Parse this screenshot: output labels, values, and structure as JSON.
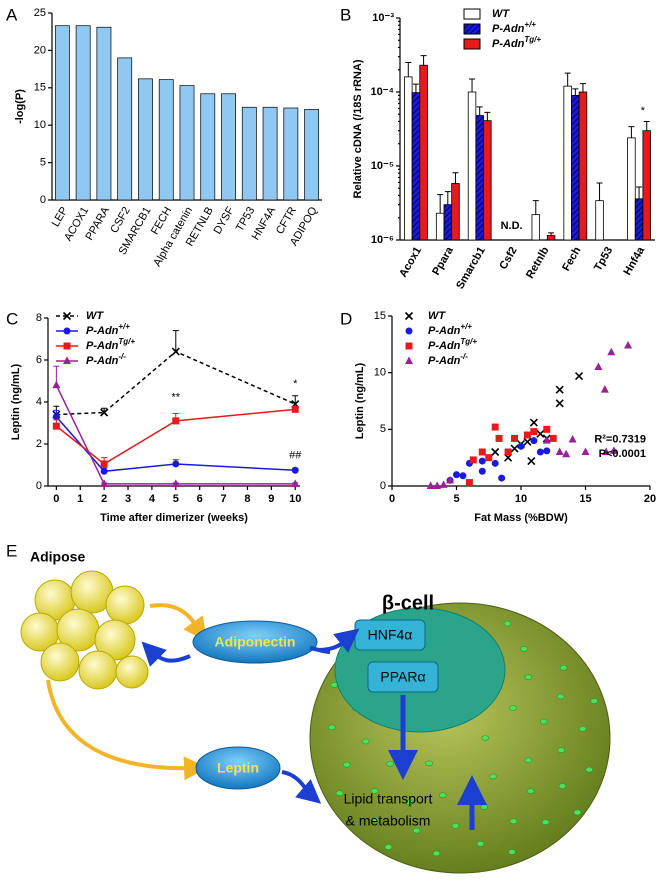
{
  "chart_data": [
    {
      "type": "bar",
      "panel_label": "A",
      "ylabel": "-log(P)",
      "color": "#8fc8f0",
      "categories": [
        "LEP",
        "ACOX1",
        "PPARA",
        "CSF2",
        "SMARCB1",
        "FECH",
        "Alpha catenin",
        "RETNLB",
        "DYSF",
        "TP53",
        "HNF4A",
        "CFTR",
        "ADIPOQ"
      ],
      "values": [
        23.3,
        23.3,
        23.1,
        19,
        16.2,
        16.1,
        15.3,
        14.2,
        14.2,
        12.4,
        12.4,
        12.3,
        12.1
      ],
      "ylim": [
        0,
        25
      ],
      "yticks": [
        0,
        5,
        10,
        15,
        20,
        25
      ]
    },
    {
      "type": "grouped-bar",
      "panel_label": "B",
      "ylabel": "Relative cDNA (/18S rRNA)",
      "yscale": "log",
      "categories": [
        "Acox1",
        "Ppara",
        "Smarcb1",
        "Csf2",
        "Retnlb",
        "Fech",
        "Tp53",
        "Hnf4a"
      ],
      "ylim": [
        1e-06,
        0.001
      ],
      "yticks": [
        {
          "value": 1e-06,
          "label": "10⁻⁶"
        },
        {
          "value": 1e-05,
          "label": "10⁻⁵"
        },
        {
          "value": 0.0001,
          "label": "10⁻⁴"
        },
        {
          "value": 0.001,
          "label": "10⁻³"
        }
      ],
      "series": [
        {
          "name": "WT",
          "color": "#ffffff",
          "hatch": false,
          "values": [
            0.00016,
            2.3e-06,
            0.0001,
            null,
            2.2e-06,
            0.00012,
            3.4e-06,
            2.4e-05
          ],
          "errors": [
            9e-05,
            1.8e-06,
            5e-05,
            null,
            1.2e-06,
            6e-05,
            2.5e-06,
            1e-05
          ]
        },
        {
          "name": "P-Adn+/+",
          "color": "#1a1adf",
          "hatch": true,
          "values": [
            9.8e-05,
            3e-06,
            4.8e-05,
            null,
            null,
            9e-05,
            null,
            3.6e-06
          ],
          "errors": [
            3e-05,
            1.5e-06,
            1.5e-05,
            null,
            null,
            2e-05,
            null,
            1.6e-06
          ]
        },
        {
          "name": "P-AdnTg/+",
          "color": "#e41a1c",
          "hatch": false,
          "values": [
            0.00023,
            5.8e-06,
            4.1e-05,
            null,
            1.15e-06,
            0.0001,
            null,
            3e-05
          ],
          "errors": [
            8e-05,
            2.3e-06,
            1.2e-05,
            null,
            1e-07,
            3e-05,
            null,
            1e-05
          ]
        }
      ],
      "annotations": [
        "N.D.",
        "*"
      ]
    },
    {
      "type": "line",
      "panel_label": "C",
      "ylabel": "Leptin (ng/mL)",
      "xlabel": "Time after dimerizer (weeks)",
      "x": [
        0,
        2,
        5,
        10
      ],
      "xlim": [
        -0.35,
        10.2
      ],
      "xticks": [
        0,
        1,
        2,
        3,
        4,
        5,
        6,
        7,
        8,
        9,
        10
      ],
      "ylim": [
        0,
        8
      ],
      "yticks": [
        0,
        2,
        4,
        6,
        8
      ],
      "series": [
        {
          "name": "WT",
          "color": "#000000",
          "dashed": true,
          "marker": "x",
          "values": [
            3.4,
            3.5,
            6.4,
            3.9
          ],
          "errors": [
            0.4,
            0.2,
            1.0,
            0.4
          ]
        },
        {
          "name": "P-Adn+/+",
          "color": "#1a1adf",
          "dashed": false,
          "marker": "circle",
          "values": [
            3.3,
            0.7,
            1.05,
            0.75
          ],
          "errors": [
            0.3,
            0.15,
            0.2,
            0.1
          ]
        },
        {
          "name": "P-AdnTg/+",
          "color": "#e41a1c",
          "dashed": false,
          "marker": "square",
          "values": [
            2.85,
            1.05,
            3.1,
            3.65
          ],
          "errors": [
            0.3,
            0.3,
            0.35,
            0.1
          ]
        },
        {
          "name": "P-Adn-/-",
          "color": "#9b1f9b",
          "dashed": false,
          "marker": "triangle",
          "values": [
            4.8,
            0.1,
            0.1,
            0.1
          ],
          "errors": [
            0.9,
            0.05,
            0.05,
            0.05
          ]
        }
      ],
      "annotations": [
        "**",
        "*",
        "##"
      ]
    },
    {
      "type": "scatter",
      "panel_label": "D",
      "ylabel": "Leptin (ng/mL)",
      "xlabel": "Fat Mass (%BDW)",
      "xlim": [
        0,
        20
      ],
      "xticks": [
        0,
        5,
        10,
        15,
        20
      ],
      "ylim": [
        0,
        15
      ],
      "yticks": [
        0,
        5,
        10,
        15
      ],
      "series": [
        {
          "name": "WT",
          "color": "#000000",
          "marker": "x",
          "x": [
            8,
            9,
            10,
            10.5,
            11,
            11.5,
            12,
            13,
            13,
            14.5,
            10.8,
            9.5
          ],
          "y": [
            3,
            2.5,
            3.7,
            3.9,
            5.6,
            4.6,
            4.2,
            8.5,
            7.3,
            9.7,
            2.2,
            3.3
          ]
        },
        {
          "name": "P-Adn+/+",
          "color": "#1a1adf",
          "marker": "circle",
          "x": [
            4.5,
            5,
            5.5,
            6,
            7,
            7,
            8,
            8.5,
            10,
            11,
            11.5,
            12
          ],
          "y": [
            0.5,
            1,
            0.9,
            2,
            1.3,
            2.2,
            2,
            0.7,
            3.5,
            4,
            3,
            3.1
          ]
        },
        {
          "name": "P-AdnTg/+",
          "color": "#e41a1c",
          "marker": "square",
          "x": [
            6,
            6.3,
            7,
            7.5,
            8,
            8.3,
            9,
            9.5,
            10.5,
            11,
            12,
            12.5
          ],
          "y": [
            0.3,
            2.3,
            3,
            2.5,
            5.2,
            4.2,
            3,
            4.2,
            4.5,
            4.8,
            5,
            4.2
          ]
        },
        {
          "name": "P-Adn-/-",
          "color": "#9b1f9b",
          "marker": "triangle",
          "x": [
            3,
            3.5,
            4,
            4.5,
            12,
            13,
            13.5,
            14,
            15,
            16,
            16.5,
            17,
            18.3,
            16.6,
            17.2
          ],
          "y": [
            0,
            0,
            0.1,
            0.5,
            4,
            3,
            2.8,
            4.1,
            3,
            10.5,
            8.5,
            11.8,
            12.4,
            3,
            3.1
          ]
        }
      ],
      "annotations": [
        "R²=0.7319",
        "P<0.0001"
      ]
    }
  ],
  "diagram": {
    "panel_label": "E",
    "adipose": "Adipose",
    "adiponectin": "Adiponectin",
    "beta_cell": "β-cell",
    "hnf4a": "HNF4α",
    "ppara": "PPARα",
    "leptin": "Leptin",
    "lipid_1": "Lipid transport",
    "lipid_2": "& metabolism"
  }
}
